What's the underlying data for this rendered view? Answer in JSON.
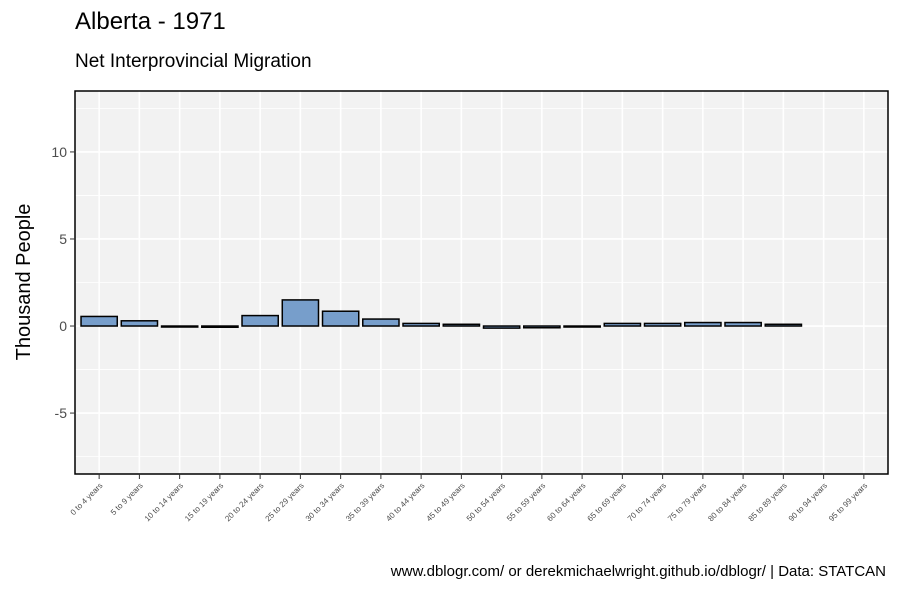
{
  "chart_data": {
    "type": "bar",
    "title": "Alberta - 1971",
    "subtitle": "Net Interprovincial Migration",
    "ylabel": "Thousand People",
    "xlabel": "",
    "caption": "www.dblogr.com/ or derekmichaelwright.github.io/dblogr/ | Data: STATCAN",
    "categories": [
      "0 to 4 years",
      "5 to 9 years",
      "10 to 14 years",
      "15 to 19 years",
      "20 to 24 years",
      "25 to 29 years",
      "30 to 34 years",
      "35 to 39 years",
      "40 to 44 years",
      "45 to 49 years",
      "50 to 54 years",
      "55 to 59 years",
      "60 to 64 years",
      "65 to 69 years",
      "70 to 74 years",
      "75 to 79 years",
      "80 to 84 years",
      "85 to 89 years",
      "90 to 94 years",
      "95 to 99 years"
    ],
    "values": [
      0.55,
      0.3,
      -0.03,
      -0.07,
      0.6,
      1.5,
      0.85,
      0.4,
      0.15,
      0.1,
      -0.12,
      -0.1,
      -0.05,
      0.15,
      0.15,
      0.2,
      0.2,
      0.1,
      null,
      null
    ],
    "yticks": [
      -5,
      0,
      5,
      10
    ],
    "ylim": [
      -8.5,
      13.5
    ],
    "grid": true,
    "bar_color": "#779ECB",
    "bar_edge_color": "#000000",
    "panel_bg": "#F2F2F2"
  }
}
